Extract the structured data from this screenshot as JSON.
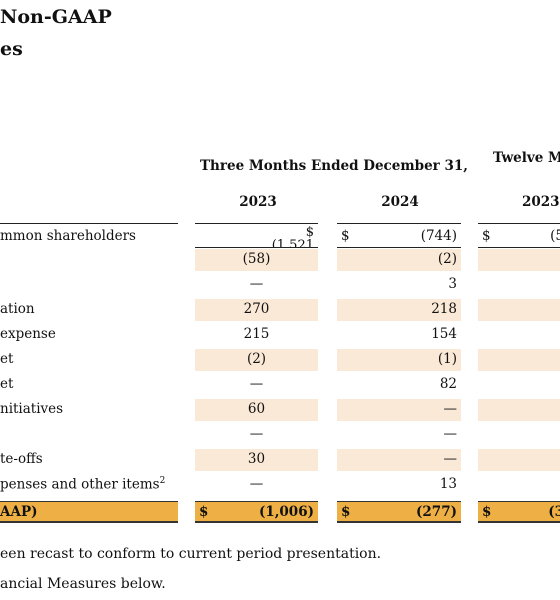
{
  "title": {
    "line1": "Non-GAAP",
    "line2": "es"
  },
  "headers": {
    "three_months": "Three Months Ended December 31,",
    "twelve_months": "Twelve M"
  },
  "years": {
    "a": "2023",
    "b": "2024",
    "c": "2023"
  },
  "currency": "$",
  "rows": [
    {
      "label": "mmon shareholders",
      "a": "(1,521",
      "b": "(744)",
      "c": "(5"
    },
    {
      "label": "",
      "a": "(58)",
      "b": "(2)",
      "c": ""
    },
    {
      "label": "",
      "a": "—",
      "b": "3",
      "c": ""
    },
    {
      "label": "ation",
      "a": "270",
      "b": "218",
      "c": ""
    },
    {
      "label": " expense",
      "a": "215",
      "b": "154",
      "c": ""
    },
    {
      "label": "et",
      "a": "(2)",
      "b": "(1)",
      "c": ""
    },
    {
      "label": "et",
      "a": "—",
      "b": "82",
      "c": ""
    },
    {
      "label": "nitiatives",
      "a": "60",
      "b": "—",
      "c": ""
    },
    {
      "label": "",
      "a": "—",
      "b": "—",
      "c": ""
    },
    {
      "label": "te-offs",
      "a": "30",
      "b": "—",
      "c": ""
    },
    {
      "label": "penses and other items",
      "label_sup": "2",
      "a": "—",
      "b": "13",
      "c": ""
    }
  ],
  "total": {
    "label": "AAP)",
    "a": "(1,006)",
    "b": "(277)",
    "c": "(3"
  },
  "notes": [
    "een recast to conform to current period presentation.",
    "ancial Measures below."
  ]
}
